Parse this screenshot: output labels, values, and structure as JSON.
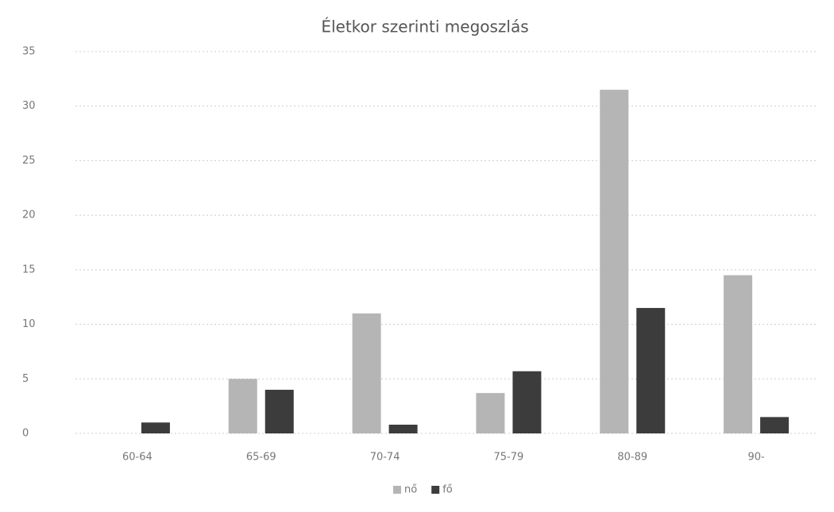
{
  "chart_data": {
    "type": "bar",
    "title": "Életkor szerinti megoszlás",
    "categories": [
      "60-64",
      "65-69",
      "70-74",
      "75-79",
      "80-89",
      "90-"
    ],
    "series": [
      {
        "name": "nő",
        "color": "#b5b5b5",
        "values": [
          0,
          5,
          11,
          3.7,
          31.5,
          14.5
        ]
      },
      {
        "name": "fő",
        "color": "#3c3c3c",
        "values": [
          1,
          4,
          0.8,
          5.7,
          11.5,
          1.5
        ]
      }
    ],
    "ylim": [
      0,
      35
    ],
    "yticks": [
      0,
      5,
      10,
      15,
      20,
      25,
      30,
      35
    ],
    "grid": true,
    "legend": "bottom"
  }
}
